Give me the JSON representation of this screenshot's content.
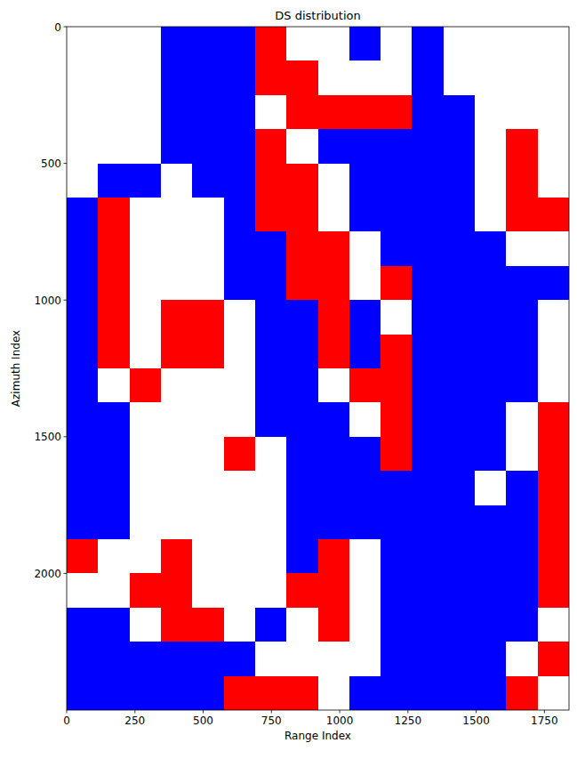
{
  "chart_data": {
    "type": "heatmap",
    "title": "DS distribution",
    "x_label": "Range Index",
    "y_label": "Azimuth Index",
    "xlim": [
      0,
      1840
    ],
    "ylim": [
      2500,
      0
    ],
    "xticks": [
      0,
      250,
      500,
      750,
      1000,
      1250,
      1500,
      1750
    ],
    "yticks": [
      0,
      500,
      1000,
      1500,
      2000
    ],
    "colors": [
      "#0000ff",
      "#ffffff",
      "#ff0000"
    ],
    "cells": [
      [
        1,
        1,
        1,
        0,
        0,
        0,
        2,
        1,
        1,
        0,
        1,
        0,
        1,
        1,
        1,
        1
      ],
      [
        1,
        1,
        1,
        0,
        0,
        0,
        2,
        2,
        1,
        1,
        1,
        0,
        1,
        1,
        1,
        1
      ],
      [
        1,
        1,
        1,
        0,
        0,
        0,
        1,
        2,
        2,
        2,
        2,
        0,
        0,
        1,
        1,
        1
      ],
      [
        1,
        1,
        1,
        0,
        0,
        0,
        2,
        1,
        0,
        0,
        0,
        0,
        0,
        1,
        2,
        1
      ],
      [
        1,
        0,
        0,
        1,
        0,
        0,
        2,
        2,
        1,
        0,
        0,
        0,
        0,
        1,
        2,
        1
      ],
      [
        0,
        2,
        1,
        1,
        1,
        0,
        2,
        2,
        1,
        0,
        0,
        0,
        0,
        1,
        2,
        2
      ],
      [
        0,
        2,
        1,
        1,
        1,
        0,
        0,
        2,
        2,
        1,
        0,
        0,
        0,
        0,
        1,
        1
      ],
      [
        0,
        2,
        1,
        1,
        1,
        0,
        0,
        2,
        2,
        1,
        2,
        0,
        0,
        0,
        0,
        0
      ],
      [
        0,
        2,
        1,
        2,
        2,
        1,
        0,
        0,
        2,
        0,
        1,
        0,
        0,
        0,
        0,
        1
      ],
      [
        0,
        2,
        1,
        2,
        2,
        1,
        0,
        0,
        2,
        0,
        2,
        0,
        0,
        0,
        0,
        1
      ],
      [
        0,
        1,
        2,
        1,
        1,
        1,
        0,
        0,
        1,
        2,
        2,
        0,
        0,
        0,
        0,
        1
      ],
      [
        0,
        0,
        1,
        1,
        1,
        1,
        0,
        0,
        0,
        1,
        2,
        0,
        0,
        0,
        1,
        2
      ],
      [
        0,
        0,
        1,
        1,
        1,
        2,
        1,
        0,
        0,
        0,
        2,
        0,
        0,
        0,
        1,
        2
      ],
      [
        0,
        0,
        1,
        1,
        1,
        1,
        1,
        0,
        0,
        0,
        0,
        0,
        0,
        1,
        0,
        2
      ],
      [
        0,
        0,
        1,
        1,
        1,
        1,
        1,
        0,
        0,
        0,
        0,
        0,
        0,
        0,
        0,
        2
      ],
      [
        2,
        1,
        1,
        2,
        1,
        1,
        1,
        0,
        2,
        1,
        0,
        0,
        0,
        0,
        0,
        2
      ],
      [
        1,
        1,
        2,
        2,
        1,
        1,
        1,
        2,
        2,
        1,
        0,
        0,
        0,
        0,
        0,
        2
      ],
      [
        0,
        0,
        1,
        2,
        2,
        1,
        0,
        1,
        2,
        1,
        0,
        0,
        0,
        0,
        0,
        1
      ],
      [
        0,
        0,
        0,
        0,
        0,
        0,
        1,
        1,
        1,
        1,
        0,
        0,
        0,
        0,
        1,
        2
      ],
      [
        0,
        0,
        0,
        0,
        0,
        2,
        2,
        2,
        1,
        0,
        0,
        0,
        0,
        0,
        2,
        1
      ]
    ]
  }
}
